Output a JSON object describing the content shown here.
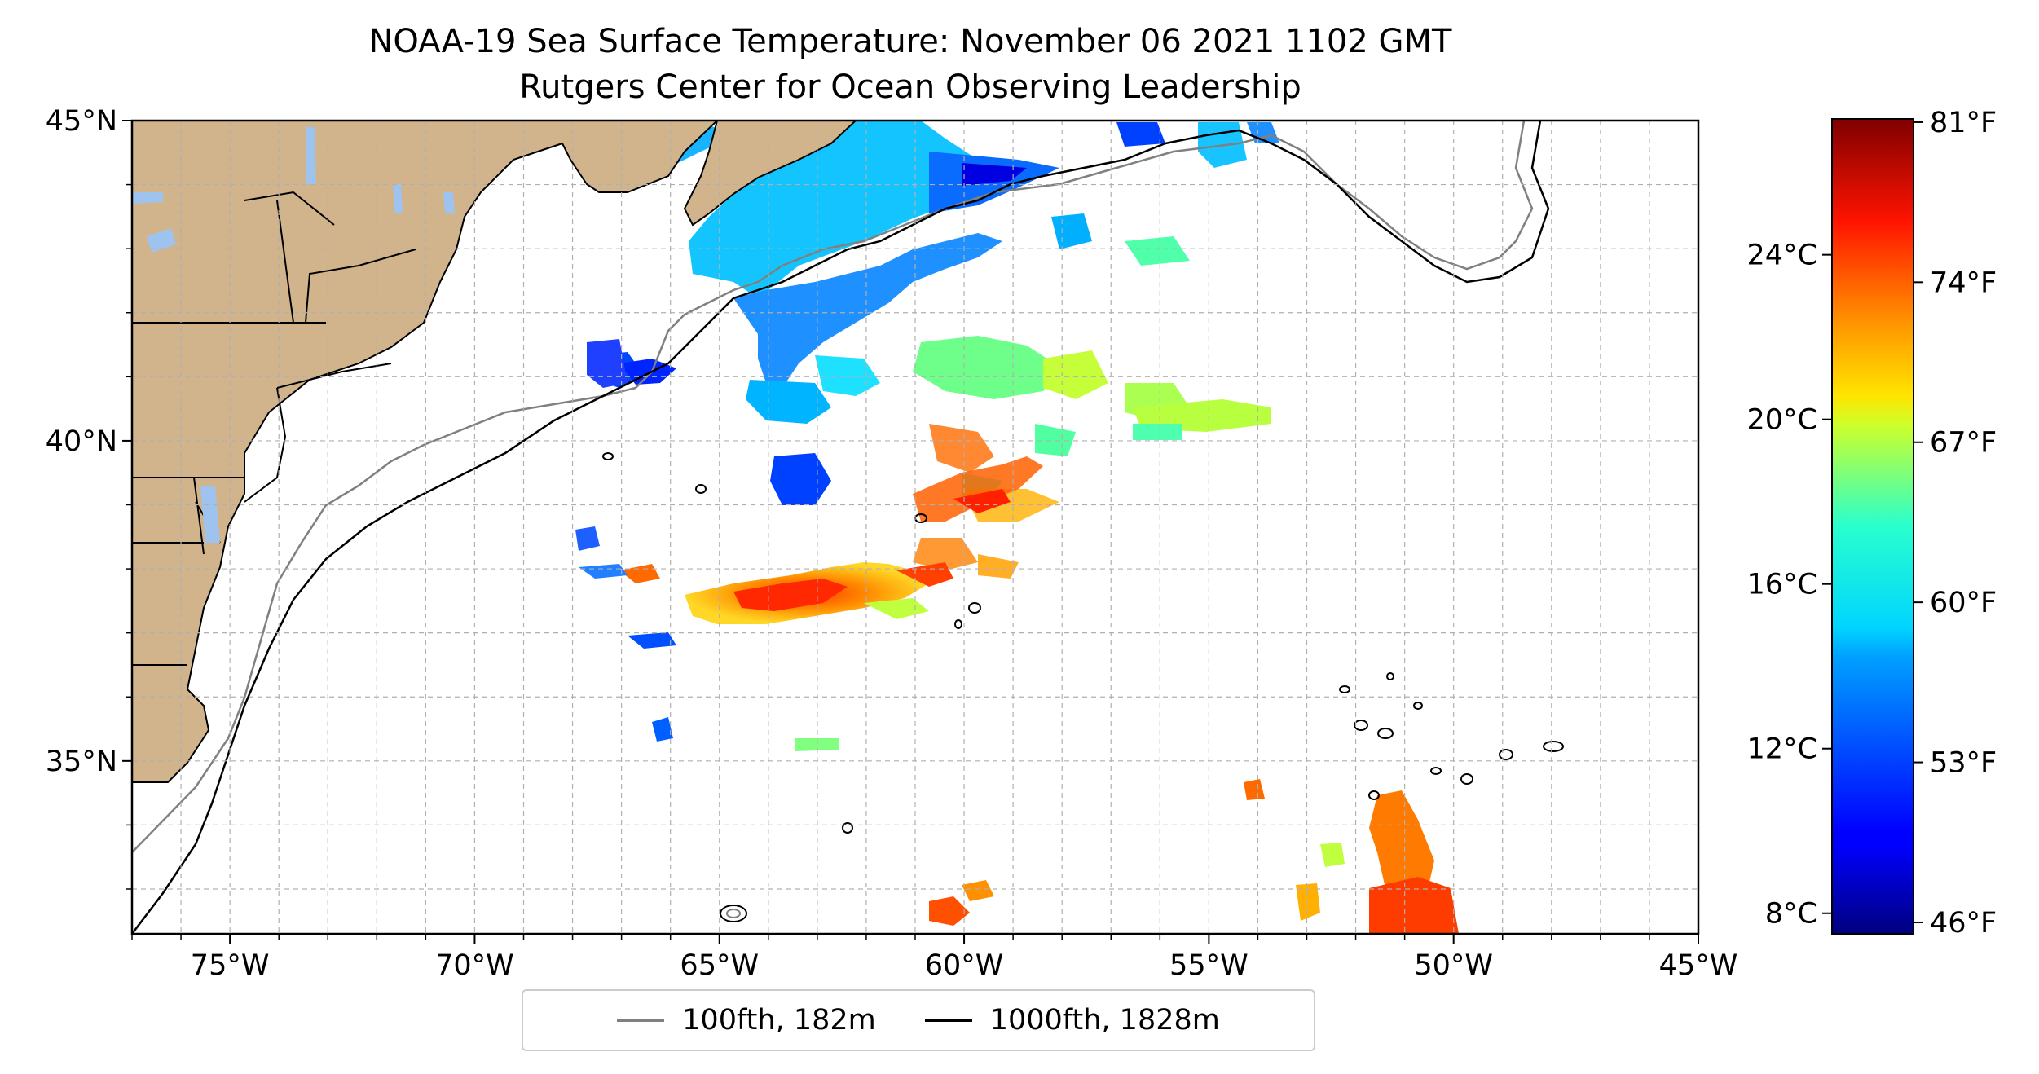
{
  "title_line1": "NOAA-19 Sea Surface Temperature: November 06 2021 1102 GMT",
  "title_line2": "Rutgers Center for Ocean Observing Leadership",
  "map": {
    "lon_range": [
      -77,
      -45
    ],
    "lat_range": [
      32.3,
      45
    ],
    "lon_ticks": [
      -75,
      -70,
      -65,
      -60,
      -55,
      -50,
      -45
    ],
    "lon_tick_labels": [
      "75°W",
      "70°W",
      "65°W",
      "60°W",
      "55°W",
      "50°W",
      "45°W"
    ],
    "lat_ticks": [
      35,
      40,
      45
    ],
    "lat_tick_labels": [
      "35°N",
      "40°N",
      "45°N"
    ],
    "gridlines": true,
    "land_color": "#d2b48c",
    "inland_water_color": "#9ec3ee"
  },
  "colorbar": {
    "colormap": "jet",
    "celsius_range": [
      7.5,
      27.3
    ],
    "celsius_ticks": [
      8,
      12,
      16,
      20,
      24
    ],
    "celsius_labels": [
      "8°C",
      "12°C",
      "16°C",
      "20°C",
      "24°C"
    ],
    "fahrenheit_ticks": [
      46,
      53,
      60,
      67,
      74,
      81
    ],
    "fahrenheit_labels": [
      "46°F",
      "53°F",
      "60°F",
      "67°F",
      "74°F",
      "81°F"
    ]
  },
  "legend": {
    "placement": "bottom-center",
    "items": [
      {
        "label": "100fth, 182m",
        "color": "#808080"
      },
      {
        "label": "1000fth, 1828m",
        "color": "#000000"
      }
    ]
  }
}
